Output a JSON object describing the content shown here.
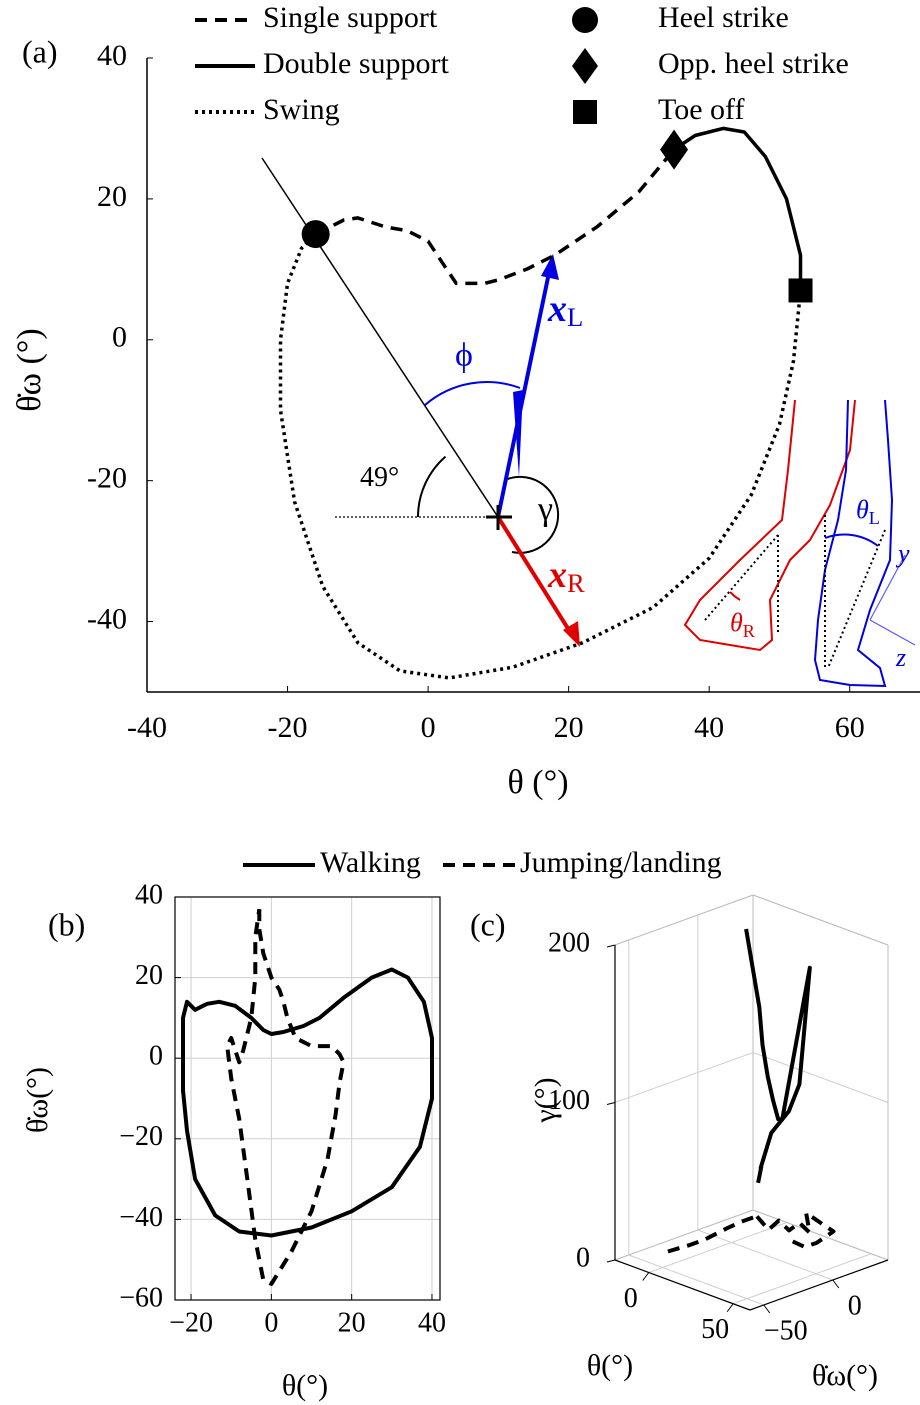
{
  "chart_data": [
    {
      "type": "line",
      "panel": "(a)",
      "xlabel": "θ (°)",
      "ylabel": "θ̇ω (°)",
      "xlim": [
        -40,
        70
      ],
      "ylim": [
        -50,
        40
      ],
      "xticks": [
        -40,
        -20,
        0,
        20,
        40,
        60
      ],
      "yticks": [
        -40,
        -20,
        0,
        20,
        40
      ],
      "series": [
        {
          "name": "Single support",
          "style": "dashed",
          "color": "#000000",
          "x": [
            -16,
            -12,
            -10,
            -6,
            -3,
            0,
            2,
            4,
            6,
            8,
            10,
            14,
            18,
            24,
            30,
            35
          ],
          "y": [
            15,
            17,
            17.3,
            16,
            15.5,
            14,
            11,
            8,
            8,
            8,
            8.5,
            10,
            12,
            16,
            21,
            27
          ]
        },
        {
          "name": "Double support",
          "style": "solid",
          "color": "#000000",
          "x": [
            35,
            38,
            42,
            45,
            48,
            51,
            53,
            53
          ],
          "y": [
            27,
            29,
            30,
            29.5,
            26,
            20,
            12,
            7
          ]
        },
        {
          "name": "Swing",
          "style": "dotted",
          "color": "#000000",
          "x": [
            53,
            52,
            50,
            46,
            40,
            32,
            22,
            12,
            3,
            -4,
            -10,
            -15,
            -19,
            -21,
            -21,
            -20,
            -18,
            -16
          ],
          "y": [
            7,
            -3,
            -12,
            -22,
            -31,
            -38,
            -43,
            -46.5,
            -48,
            -47,
            -43,
            -35,
            -23,
            -10,
            0,
            8,
            13,
            15
          ]
        }
      ],
      "markers": [
        {
          "name": "Heel strike",
          "shape": "circle",
          "x": -16,
          "y": 15
        },
        {
          "name": "Opp. heel strike",
          "shape": "diamond",
          "x": 35,
          "y": 27
        },
        {
          "name": "Toe off",
          "shape": "square",
          "x": 53,
          "y": 7
        }
      ],
      "annotations": [
        {
          "text": "49°"
        },
        {
          "text": "ϕ"
        },
        {
          "text": "γ"
        },
        {
          "text": "x",
          "sub": "L"
        },
        {
          "text": "x",
          "sub": "R"
        },
        {
          "text": "θ",
          "sub": "L"
        },
        {
          "text": "θ",
          "sub": "R"
        },
        {
          "text": "y"
        },
        {
          "text": "z"
        }
      ]
    },
    {
      "type": "line",
      "panel": "(b)",
      "xlabel": "θ(°)",
      "ylabel": "θ̇ω(°)",
      "xlim": [
        -24,
        42
      ],
      "ylim": [
        -60,
        40
      ],
      "grid": true,
      "xticks": [
        {
          "value": -20,
          "label": "−20"
        },
        0,
        20,
        40
      ],
      "yticks": [
        {
          "value": -60,
          "label": "−60"
        },
        {
          "value": -40,
          "label": "−40"
        },
        {
          "value": -20,
          "label": "−20"
        },
        0,
        20,
        40
      ],
      "series": [
        {
          "name": "Walking",
          "style": "solid",
          "color": "#000000",
          "x": [
            -22,
            -22,
            -21,
            -19,
            -16,
            -13,
            -9,
            -5,
            -2,
            0,
            3,
            8,
            12,
            18,
            25,
            30,
            34,
            38,
            40,
            40,
            37,
            30,
            20,
            10,
            0,
            -8,
            -14,
            -19,
            -21,
            -22,
            -22
          ],
          "y": [
            0,
            10,
            14,
            12,
            13.5,
            14,
            13,
            10,
            7,
            6,
            6.5,
            8,
            10,
            15,
            20,
            22,
            20,
            14,
            5,
            -10,
            -22,
            -32,
            -38,
            -42,
            -44,
            -43,
            -39,
            -30,
            -18,
            -8,
            0
          ]
        },
        {
          "name": "Jumping/landing",
          "style": "dashed",
          "color": "#000000",
          "x": [
            -3,
            -3,
            -2,
            0,
            2,
            3,
            4,
            6,
            10,
            15,
            17,
            18,
            17,
            16,
            14,
            10,
            5,
            0,
            -2,
            -4,
            -6,
            -8,
            -10,
            -11,
            -10,
            -8,
            -7,
            -5,
            -4,
            -4,
            -3
          ],
          "y": [
            37,
            32,
            26,
            20,
            17,
            14,
            10,
            5,
            3,
            3,
            1,
            -1,
            -6,
            -14,
            -25,
            -38,
            -48,
            -56,
            -55,
            -45,
            -30,
            -15,
            -5,
            3,
            5,
            -1,
            2,
            10,
            20,
            30,
            37
          ]
        }
      ]
    },
    {
      "type": "line3d",
      "panel": "(c)",
      "xlabel": "θ(°)",
      "ylabel": "θ̇ω(°)",
      "zlabel": "γ(°)",
      "xlim": [
        -20,
        60
      ],
      "ylim": [
        -60,
        40
      ],
      "zlim": [
        0,
        200
      ],
      "xticks": [
        0,
        50
      ],
      "yticks": [
        {
          "value": -50,
          "label": "−50"
        },
        0
      ],
      "zticks": [
        0,
        100,
        200
      ],
      "series": [
        {
          "style": "solid",
          "color": "#000000",
          "x": [
            -20,
            -12,
            -4,
            2,
            10,
            18,
            26,
            30,
            30,
            32,
            38,
            44,
            50,
            52,
            55
          ],
          "y": [
            35,
            30,
            25,
            20,
            14,
            8,
            2,
            0,
            20,
            10,
            -5,
            -25,
            -40,
            -42,
            -48
          ],
          "z": [
            180,
            160,
            140,
            120,
            105,
            95,
            88,
            90,
            180,
            110,
            100,
            95,
            80,
            82,
            75
          ]
        },
        {
          "style": "dashed",
          "color": "#000000",
          "x": [
            -5,
            0,
            5,
            10,
            14,
            18,
            22,
            26,
            28,
            30,
            32,
            34,
            36,
            38,
            40,
            38,
            35,
            30
          ],
          "y": [
            -40,
            -30,
            -25,
            -15,
            -10,
            -5,
            -10,
            -5,
            0,
            5,
            10,
            15,
            10,
            20,
            25,
            15,
            10,
            5
          ],
          "z": [
            5,
            8,
            12,
            18,
            22,
            25,
            30,
            20,
            25,
            18,
            22,
            15,
            30,
            20,
            15,
            10,
            8,
            12
          ]
        }
      ]
    }
  ]
}
